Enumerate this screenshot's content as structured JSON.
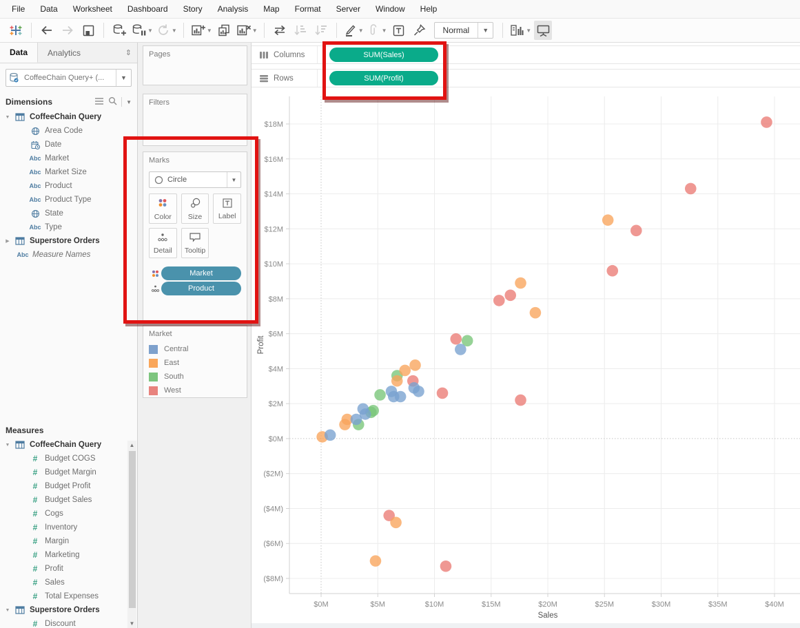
{
  "menu": {
    "items": [
      "File",
      "Data",
      "Worksheet",
      "Dashboard",
      "Story",
      "Analysis",
      "Map",
      "Format",
      "Server",
      "Window",
      "Help"
    ]
  },
  "toolbar": {
    "fit_mode": "Normal",
    "buttons": [
      {
        "name": "tableau-logo",
        "disabled": false
      },
      {
        "name": "divider"
      },
      {
        "name": "undo",
        "disabled": false
      },
      {
        "name": "redo",
        "disabled": true
      },
      {
        "name": "save",
        "disabled": false
      },
      {
        "name": "divider"
      },
      {
        "name": "add-datasource",
        "disabled": false
      },
      {
        "name": "pause-updates",
        "disabled": false,
        "caret": true
      },
      {
        "name": "refresh",
        "disabled": true,
        "caret": true
      },
      {
        "name": "divider"
      },
      {
        "name": "new-worksheet",
        "disabled": false,
        "caret": true
      },
      {
        "name": "duplicate-sheet",
        "disabled": false
      },
      {
        "name": "clear-sheet",
        "disabled": false,
        "caret": true
      },
      {
        "name": "divider"
      },
      {
        "name": "swap-rows-columns",
        "disabled": false
      },
      {
        "name": "sort-ascending",
        "disabled": true
      },
      {
        "name": "sort-descending",
        "disabled": true
      },
      {
        "name": "divider"
      },
      {
        "name": "highlight",
        "disabled": false,
        "caret": true
      },
      {
        "name": "group-members",
        "disabled": true,
        "caret": true
      },
      {
        "name": "show-mark-labels",
        "disabled": false
      },
      {
        "name": "fix-axes",
        "disabled": false
      },
      {
        "name": "fit-select"
      },
      {
        "name": "divider"
      },
      {
        "name": "show-hide-cards",
        "disabled": false,
        "caret": true
      },
      {
        "name": "presentation-mode",
        "disabled": false,
        "active": true
      }
    ]
  },
  "sidebar": {
    "tabs": [
      {
        "label": "Data",
        "active": true
      },
      {
        "label": "Analytics",
        "active": false
      }
    ],
    "datasource": "CoffeeChain Query+ (...",
    "dimensions": {
      "title": "Dimensions",
      "items": [
        {
          "icon": "table",
          "label": "CoffeeChain Query",
          "bold": true,
          "chevron": "expanded"
        },
        {
          "icon": "globe",
          "label": "Area Code"
        },
        {
          "icon": "date",
          "label": "Date"
        },
        {
          "icon": "abc",
          "label": "Market"
        },
        {
          "icon": "abc",
          "label": "Market Size"
        },
        {
          "icon": "abc",
          "label": "Product"
        },
        {
          "icon": "abc",
          "label": "Product Type"
        },
        {
          "icon": "globe",
          "label": "State"
        },
        {
          "icon": "abc",
          "label": "Type"
        },
        {
          "icon": "table",
          "label": "Superstore Orders",
          "bold": true,
          "chevron": "collapsed"
        },
        {
          "icon": "abc",
          "label": "Measure Names",
          "italic": true,
          "toplevel": true
        }
      ]
    },
    "measures": {
      "title": "Measures",
      "items": [
        {
          "icon": "table",
          "label": "CoffeeChain Query",
          "bold": true,
          "chevron": "expanded"
        },
        {
          "icon": "num",
          "label": "Budget COGS"
        },
        {
          "icon": "num",
          "label": "Budget Margin"
        },
        {
          "icon": "num",
          "label": "Budget Profit"
        },
        {
          "icon": "num",
          "label": "Budget Sales"
        },
        {
          "icon": "num",
          "label": "Cogs"
        },
        {
          "icon": "num",
          "label": "Inventory"
        },
        {
          "icon": "num",
          "label": "Margin"
        },
        {
          "icon": "num",
          "label": "Marketing"
        },
        {
          "icon": "num",
          "label": "Profit"
        },
        {
          "icon": "num",
          "label": "Sales"
        },
        {
          "icon": "num",
          "label": "Total Expenses"
        },
        {
          "icon": "table",
          "label": "Superstore Orders",
          "bold": true,
          "chevron": "expanded"
        },
        {
          "icon": "num",
          "label": "Discount"
        }
      ]
    }
  },
  "cards": {
    "pages": {
      "title": "Pages"
    },
    "filters": {
      "title": "Filters"
    },
    "marks": {
      "title": "Marks",
      "mark_type": "Circle",
      "buttons": [
        {
          "label": "Color"
        },
        {
          "label": "Size"
        },
        {
          "label": "Label"
        },
        {
          "label": "Detail"
        },
        {
          "label": "Tooltip"
        }
      ],
      "pills": [
        {
          "label": "Market",
          "icon": "color"
        },
        {
          "label": "Product",
          "icon": "detail"
        }
      ],
      "pill_color": "#4a92ac"
    },
    "legend": {
      "title": "Market",
      "entries": [
        {
          "label": "Central",
          "color": "#7EA1CC"
        },
        {
          "label": "East",
          "color": "#F9A65A"
        },
        {
          "label": "South",
          "color": "#7DC57E"
        },
        {
          "label": "West",
          "color": "#E8837E"
        }
      ]
    }
  },
  "shelves": {
    "columns": {
      "label": "Columns",
      "pills": [
        "SUM(Sales)"
      ]
    },
    "rows": {
      "label": "Rows",
      "pills": [
        "SUM(Profit)"
      ]
    },
    "pill_color": "#0aab8a"
  },
  "chart_data": {
    "type": "scatter",
    "xlabel": "Sales",
    "ylabel": "Profit",
    "xlim": [
      -2.8,
      42.2
    ],
    "ylim": [
      -8.9,
      19.6
    ],
    "grid": true,
    "x_ticks": [
      {
        "v": 0,
        "label": "$0M"
      },
      {
        "v": 5,
        "label": "$5M"
      },
      {
        "v": 10,
        "label": "$10M"
      },
      {
        "v": 15,
        "label": "$15M"
      },
      {
        "v": 20,
        "label": "$20M"
      },
      {
        "v": 25,
        "label": "$25M"
      },
      {
        "v": 30,
        "label": "$30M"
      },
      {
        "v": 35,
        "label": "$35M"
      },
      {
        "v": 40,
        "label": "$40M"
      }
    ],
    "y_ticks": [
      {
        "v": 18,
        "label": "$18M"
      },
      {
        "v": 16,
        "label": "$16M"
      },
      {
        "v": 14,
        "label": "$14M"
      },
      {
        "v": 12,
        "label": "$12M"
      },
      {
        "v": 10,
        "label": "$10M"
      },
      {
        "v": 8,
        "label": "$8M"
      },
      {
        "v": 6,
        "label": "$6M"
      },
      {
        "v": 4,
        "label": "$4M"
      },
      {
        "v": 2,
        "label": "$2M"
      },
      {
        "v": 0,
        "label": "$0M"
      },
      {
        "v": -2,
        "label": "($2M)"
      },
      {
        "v": -4,
        "label": "($4M)"
      },
      {
        "v": -6,
        "label": "($6M)"
      },
      {
        "v": -8,
        "label": "($8M)"
      }
    ],
    "series": [
      {
        "name": "Central",
        "color": "#79A1CF",
        "points": [
          [
            0.8,
            0.2
          ],
          [
            3.1,
            1.1
          ],
          [
            3.7,
            1.7
          ],
          [
            3.9,
            1.4
          ],
          [
            6.2,
            2.7
          ],
          [
            6.4,
            2.4
          ],
          [
            7.0,
            2.4
          ],
          [
            8.2,
            2.9
          ],
          [
            8.6,
            2.7
          ],
          [
            12.3,
            5.1
          ]
        ]
      },
      {
        "name": "East",
        "color": "#F9A45B",
        "points": [
          [
            0.1,
            0.1
          ],
          [
            2.1,
            0.8
          ],
          [
            2.3,
            1.1
          ],
          [
            6.7,
            3.3
          ],
          [
            7.4,
            3.9
          ],
          [
            8.3,
            4.2
          ],
          [
            17.6,
            8.9
          ],
          [
            18.9,
            7.2
          ],
          [
            25.3,
            12.5
          ],
          [
            4.8,
            -7.0
          ],
          [
            6.6,
            -4.8
          ]
        ]
      },
      {
        "name": "South",
        "color": "#79C578",
        "points": [
          [
            3.3,
            0.8
          ],
          [
            4.4,
            1.5
          ],
          [
            4.6,
            1.6
          ],
          [
            5.2,
            2.5
          ],
          [
            6.7,
            3.6
          ],
          [
            12.9,
            5.6
          ]
        ]
      },
      {
        "name": "West",
        "color": "#EA7B74",
        "points": [
          [
            6.0,
            -4.4
          ],
          [
            8.1,
            3.3
          ],
          [
            10.7,
            2.6
          ],
          [
            11.0,
            -7.3
          ],
          [
            11.9,
            5.7
          ],
          [
            15.7,
            7.9
          ],
          [
            16.7,
            8.2
          ],
          [
            17.6,
            2.2
          ],
          [
            25.7,
            9.6
          ],
          [
            27.8,
            11.9
          ],
          [
            32.6,
            14.3
          ],
          [
            39.3,
            18.1
          ]
        ]
      }
    ],
    "draw_order": [
      3,
      2,
      1,
      0
    ],
    "marker": {
      "radius": 8.3,
      "opacity": 0.78
    }
  },
  "annotations": {
    "highlight_color": "#e11312"
  }
}
